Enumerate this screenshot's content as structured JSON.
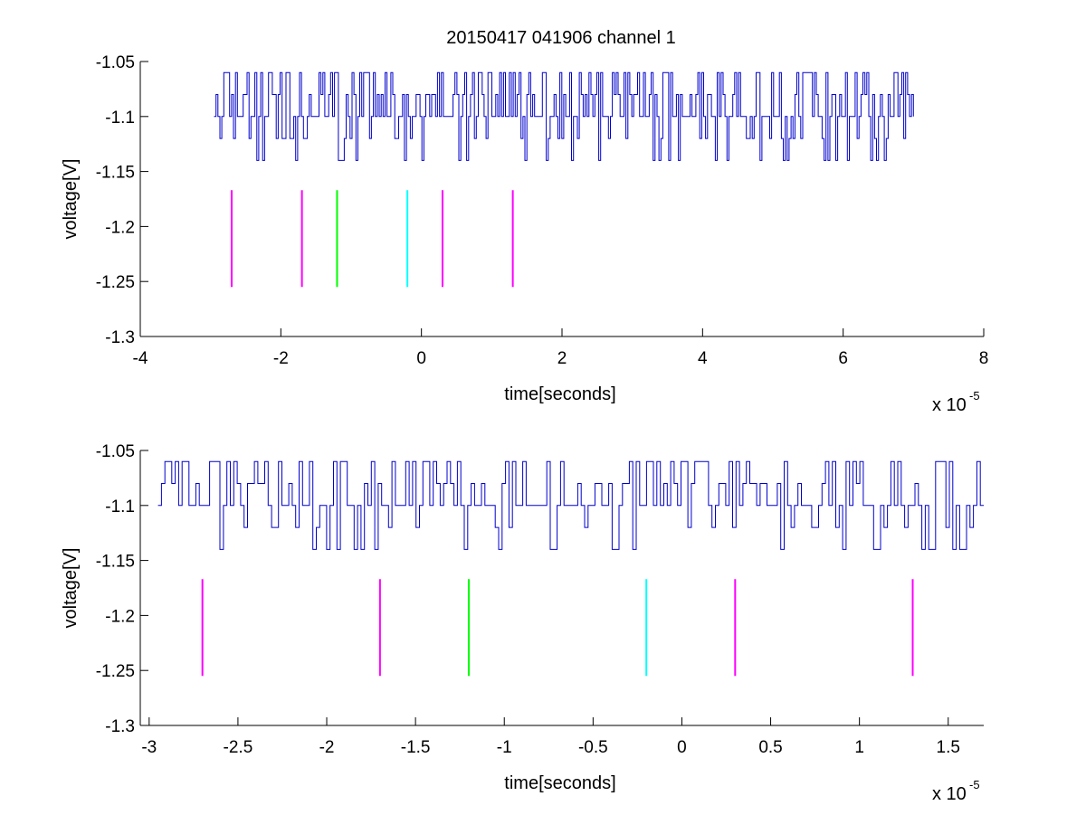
{
  "figure": {
    "title": "20150417 041906 channel 1"
  },
  "chart_data": [
    {
      "type": "line",
      "title": "20150417 041906 channel 1",
      "xlabel": "time[seconds]",
      "ylabel": "voltage[V]",
      "x_multiplier_label": "x 10",
      "x_multiplier_exponent": "-5",
      "xlim": [
        -4,
        8
      ],
      "ylim": [
        -1.3,
        -1.05
      ],
      "xticks": [
        -4,
        -2,
        0,
        2,
        4,
        6,
        8
      ],
      "yticks": [
        -1.3,
        -1.25,
        -1.2,
        -1.15,
        -1.1,
        -1.05
      ],
      "xtick_labels": [
        "-4",
        "-2",
        "0",
        "2",
        "4",
        "6",
        "8"
      ],
      "ytick_labels": [
        "-1.3",
        "-1.25",
        "-1.2",
        "-1.15",
        "-1.1",
        "-1.05"
      ],
      "grid": false,
      "signal": {
        "color": "#0000cc",
        "x_start": -2.95,
        "x_end": 7.0,
        "levels": [
          -1.14,
          -1.12,
          -1.1,
          -1.08,
          -1.06
        ],
        "baseline": -1.1,
        "samples": 360
      },
      "markers": [
        {
          "x": -2.7,
          "y1": -1.167,
          "y2": -1.255,
          "color": "#ff00ff"
        },
        {
          "x": -1.7,
          "y1": -1.167,
          "y2": -1.255,
          "color": "#ff00ff"
        },
        {
          "x": -1.2,
          "y1": -1.167,
          "y2": -1.255,
          "color": "#00ff00"
        },
        {
          "x": -0.2,
          "y1": -1.167,
          "y2": -1.255,
          "color": "#00ffff"
        },
        {
          "x": 0.3,
          "y1": -1.167,
          "y2": -1.255,
          "color": "#ff00ff"
        },
        {
          "x": 1.3,
          "y1": -1.167,
          "y2": -1.255,
          "color": "#ff00ff"
        }
      ]
    },
    {
      "type": "line",
      "xlabel": "time[seconds]",
      "ylabel": "voltage[V]",
      "x_multiplier_label": "x 10",
      "x_multiplier_exponent": "-5",
      "xlim": [
        -3.05,
        1.7
      ],
      "ylim": [
        -1.3,
        -1.05
      ],
      "xticks": [
        -3,
        -2.5,
        -2,
        -1.5,
        -1,
        -0.5,
        0,
        0.5,
        1,
        1.5
      ],
      "yticks": [
        -1.3,
        -1.25,
        -1.2,
        -1.15,
        -1.1,
        -1.05
      ],
      "xtick_labels": [
        "-3",
        "-2.5",
        "-2",
        "-1.5",
        "-1",
        "-0.5",
        "0",
        "0.5",
        "1",
        "1.5"
      ],
      "ytick_labels": [
        "-1.3",
        "-1.25",
        "-1.2",
        "-1.15",
        "-1.1",
        "-1.05"
      ],
      "grid": false,
      "signal": {
        "color": "#0000cc",
        "x_start": -2.95,
        "x_end": 1.7,
        "levels": [
          -1.14,
          -1.12,
          -1.1,
          -1.08,
          -1.06
        ],
        "baseline": -1.1,
        "samples": 240
      },
      "markers": [
        {
          "x": -2.7,
          "y1": -1.167,
          "y2": -1.255,
          "color": "#ff00ff"
        },
        {
          "x": -1.7,
          "y1": -1.167,
          "y2": -1.255,
          "color": "#ff00ff"
        },
        {
          "x": -1.2,
          "y1": -1.167,
          "y2": -1.255,
          "color": "#00ff00"
        },
        {
          "x": -0.2,
          "y1": -1.167,
          "y2": -1.255,
          "color": "#00ffff"
        },
        {
          "x": 0.3,
          "y1": -1.167,
          "y2": -1.255,
          "color": "#ff00ff"
        },
        {
          "x": 1.3,
          "y1": -1.167,
          "y2": -1.255,
          "color": "#ff00ff"
        }
      ]
    }
  ]
}
